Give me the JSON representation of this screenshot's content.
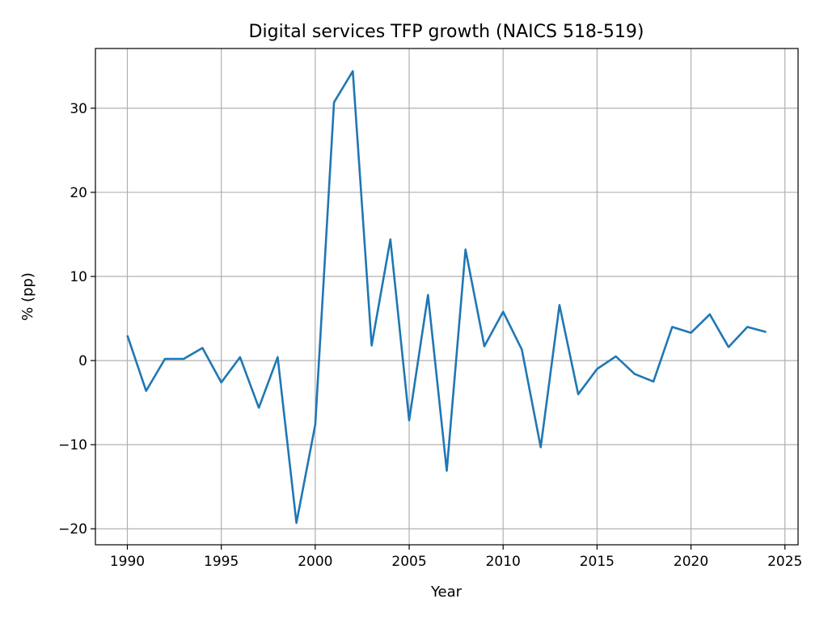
{
  "chart_data": {
    "type": "line",
    "title": "Digital services TFP growth (NAICS 518-519)",
    "xlabel": "Year",
    "ylabel": "% (pp)",
    "xlim": [
      1988.3,
      2025.7
    ],
    "ylim": [
      -21.9,
      37.1
    ],
    "xticks": [
      1990,
      1995,
      2000,
      2005,
      2010,
      2015,
      2020,
      2025
    ],
    "yticks": [
      -20,
      -10,
      0,
      10,
      20,
      30
    ],
    "ytick_labels": [
      "−20",
      "−10",
      "0",
      "10",
      "20",
      "30"
    ],
    "grid": true,
    "line_color": "#1f77b4",
    "series": [
      {
        "name": "TFP growth",
        "x": [
          1990,
          1991,
          1992,
          1993,
          1994,
          1995,
          1996,
          1997,
          1998,
          1999,
          2000,
          2001,
          2002,
          2003,
          2004,
          2005,
          2006,
          2007,
          2008,
          2009,
          2010,
          2011,
          2012,
          2013,
          2014,
          2015,
          2016,
          2017,
          2018,
          2019,
          2020,
          2021,
          2022,
          2023,
          2024
        ],
        "y": [
          3.0,
          -3.6,
          0.2,
          0.2,
          1.5,
          -2.6,
          0.4,
          -5.6,
          0.4,
          -19.3,
          -7.6,
          30.7,
          34.4,
          1.8,
          14.4,
          -7.1,
          7.8,
          -13.1,
          13.2,
          1.7,
          5.8,
          1.3,
          -10.3,
          6.6,
          -4.0,
          -1.0,
          0.5,
          -1.6,
          -2.5,
          4.0,
          3.3,
          5.5,
          1.6,
          4.0,
          3.4
        ]
      }
    ]
  }
}
